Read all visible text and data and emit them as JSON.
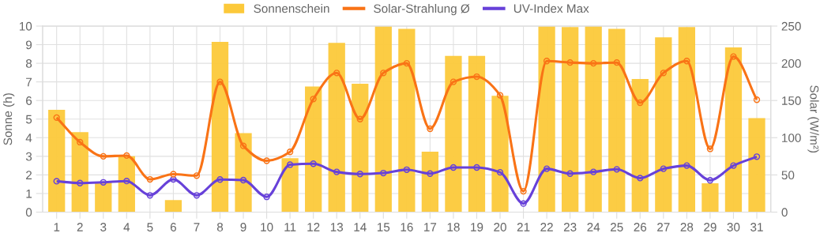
{
  "chart_data": {
    "type": "bar",
    "categories": [
      "1",
      "2",
      "3",
      "4",
      "5",
      "6",
      "7",
      "8",
      "9",
      "10",
      "11",
      "12",
      "13",
      "14",
      "15",
      "16",
      "17",
      "18",
      "19",
      "20",
      "21",
      "22",
      "23",
      "24",
      "25",
      "26",
      "27",
      "28",
      "29",
      "30",
      "31"
    ],
    "ylabel": "Sonne (h)",
    "y2label": "Solar (W/m²)",
    "ylim": [
      0,
      10
    ],
    "yticks": [
      0,
      1,
      2,
      3,
      4,
      5,
      6,
      7,
      8,
      9,
      10
    ],
    "y2lim": [
      0,
      250
    ],
    "y2ticks": [
      0,
      50,
      100,
      150,
      200,
      250
    ],
    "grid": true,
    "legend": "top",
    "marker": "circle",
    "series": [
      {
        "name": "Sonnenschein",
        "type": "bar",
        "color": "#fcc93a",
        "values": [
          5.5,
          4.3,
          1.6,
          3.0,
          0,
          0.65,
          0,
          9.15,
          4.25,
          0,
          2.9,
          6.75,
          9.1,
          6.9,
          10,
          9.85,
          3.25,
          8.4,
          8.4,
          6.25,
          0,
          10,
          9.95,
          10,
          9.85,
          7.15,
          9.4,
          9.95,
          1.55,
          8.85,
          5.05
        ]
      },
      {
        "name": "Solar-Strahlung Ø",
        "type": "line",
        "axis": "y2",
        "color": "#f97316",
        "values": [
          127,
          94,
          75,
          76,
          44,
          51,
          49,
          175,
          89,
          69,
          81,
          152,
          187,
          125,
          187,
          200,
          112,
          175,
          182,
          157,
          28,
          203,
          201,
          200,
          201,
          147,
          187,
          203,
          85,
          209,
          151
        ]
      },
      {
        "name": "UV-Index Max",
        "type": "line",
        "color": "#6741d9",
        "values": [
          1.66,
          1.56,
          1.6,
          1.67,
          0.9,
          1.76,
          0.9,
          1.75,
          1.72,
          0.82,
          2.55,
          2.6,
          2.16,
          2.05,
          2.1,
          2.28,
          2.07,
          2.4,
          2.4,
          2.14,
          0.46,
          2.33,
          2.07,
          2.16,
          2.3,
          1.83,
          2.33,
          2.5,
          1.71,
          2.5,
          2.98
        ]
      }
    ]
  }
}
